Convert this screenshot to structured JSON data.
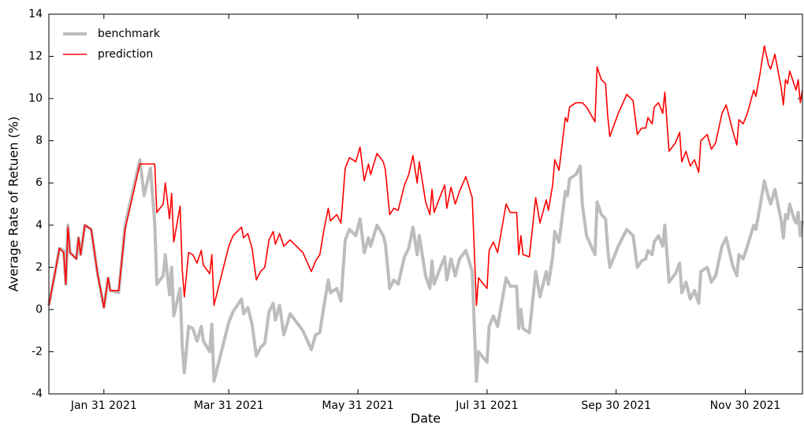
{
  "chart_data": {
    "type": "line",
    "xlabel": "Date",
    "ylabel": "Average Rate of Retuen (%)",
    "legend": "upper left",
    "grid": false,
    "xlim": [
      "2021-01-05",
      "2021-12-27"
    ],
    "xticks": [
      {
        "value": "2021-01-31",
        "label": "Jan 31 2021"
      },
      {
        "value": "2021-03-31",
        "label": "Mar 31 2021"
      },
      {
        "value": "2021-05-31",
        "label": "May 31 2021"
      },
      {
        "value": "2021-07-31",
        "label": "Jul 31 2021"
      },
      {
        "value": "2021-09-30",
        "label": "Sep 30 2021"
      },
      {
        "value": "2021-11-30",
        "label": "Nov 30 2021"
      }
    ],
    "ylim": [
      -4,
      14
    ],
    "yticks": [
      -4,
      -2,
      0,
      2,
      4,
      6,
      8,
      10,
      12,
      14
    ],
    "x": [
      "2021-01-05",
      "2021-01-08",
      "2021-01-10",
      "2021-01-12",
      "2021-01-13",
      "2021-01-14",
      "2021-01-15",
      "2021-01-18",
      "2021-01-19",
      "2021-01-20",
      "2021-01-22",
      "2021-01-25",
      "2021-01-28",
      "2021-01-31",
      "2021-02-02",
      "2021-02-03",
      "2021-02-07",
      "2021-02-10",
      "2021-02-17",
      "2021-02-19",
      "2021-02-22",
      "2021-02-24",
      "2021-02-25",
      "2021-02-28",
      "2021-03-01",
      "2021-03-03",
      "2021-03-04",
      "2021-03-05",
      "2021-03-08",
      "2021-03-09",
      "2021-03-10",
      "2021-03-12",
      "2021-03-14",
      "2021-03-16",
      "2021-03-18",
      "2021-03-19",
      "2021-03-22",
      "2021-03-23",
      "2021-03-24",
      "2021-03-29",
      "2021-03-31",
      "2021-04-02",
      "2021-04-06",
      "2021-04-07",
      "2021-04-09",
      "2021-04-11",
      "2021-04-13",
      "2021-04-15",
      "2021-04-17",
      "2021-04-19",
      "2021-04-21",
      "2021-04-22",
      "2021-04-24",
      "2021-04-26",
      "2021-04-29",
      "2021-05-02",
      "2021-05-05",
      "2021-05-09",
      "2021-05-11",
      "2021-05-13",
      "2021-05-15",
      "2021-05-17",
      "2021-05-18",
      "2021-05-21",
      "2021-05-23",
      "2021-05-25",
      "2021-05-27",
      "2021-05-30",
      "2021-06-01",
      "2021-06-03",
      "2021-06-05",
      "2021-06-06",
      "2021-06-09",
      "2021-06-12",
      "2021-06-13",
      "2021-06-15",
      "2021-06-17",
      "2021-06-19",
      "2021-06-22",
      "2021-06-24",
      "2021-06-26",
      "2021-06-28",
      "2021-06-29",
      "2021-07-02",
      "2021-07-04",
      "2021-07-05",
      "2021-07-06",
      "2021-07-09",
      "2021-07-11",
      "2021-07-12",
      "2021-07-14",
      "2021-07-16",
      "2021-07-18",
      "2021-07-21",
      "2021-07-24",
      "2021-07-26",
      "2021-07-27",
      "2021-07-31",
      "2021-08-01",
      "2021-08-03",
      "2021-08-05",
      "2021-08-09",
      "2021-08-11",
      "2021-08-14",
      "2021-08-15",
      "2021-08-16",
      "2021-08-17",
      "2021-08-20",
      "2021-08-23",
      "2021-08-25",
      "2021-08-28",
      "2021-08-29",
      "2021-08-31",
      "2021-09-01",
      "2021-09-03",
      "2021-09-06",
      "2021-09-07",
      "2021-09-08",
      "2021-09-11",
      "2021-09-13",
      "2021-09-14",
      "2021-09-16",
      "2021-09-20",
      "2021-09-21",
      "2021-09-23",
      "2021-09-25",
      "2021-09-26",
      "2021-09-27",
      "2021-10-01",
      "2021-10-05",
      "2021-10-08",
      "2021-10-10",
      "2021-10-12",
      "2021-10-14",
      "2021-10-15",
      "2021-10-17",
      "2021-10-18",
      "2021-10-20",
      "2021-10-22",
      "2021-10-23",
      "2021-10-25",
      "2021-10-28",
      "2021-10-30",
      "2021-10-31",
      "2021-11-02",
      "2021-11-04",
      "2021-11-06",
      "2021-11-08",
      "2021-11-09",
      "2021-11-12",
      "2021-11-14",
      "2021-11-16",
      "2021-11-19",
      "2021-11-21",
      "2021-11-24",
      "2021-11-26",
      "2021-11-27",
      "2021-11-29",
      "2021-12-01",
      "2021-12-04",
      "2021-12-05",
      "2021-12-07",
      "2021-12-09",
      "2021-12-11",
      "2021-12-12",
      "2021-12-14",
      "2021-12-17",
      "2021-12-18",
      "2021-12-19",
      "2021-12-20",
      "2021-12-21",
      "2021-12-23",
      "2021-12-24",
      "2021-12-25",
      "2021-12-26",
      "2021-12-27"
    ],
    "series": [
      {
        "name": "benchmark",
        "color": "#bdbdbd",
        "width": 4,
        "values": [
          0.2,
          1.8,
          2.9,
          2.8,
          1.2,
          4.0,
          2.7,
          2.4,
          3.4,
          2.6,
          4.0,
          3.8,
          1.7,
          0.1,
          1.5,
          0.9,
          0.8,
          4.0,
          7.1,
          5.4,
          6.7,
          4.1,
          1.2,
          1.6,
          2.6,
          0.7,
          2.0,
          -0.3,
          1.0,
          -1.7,
          -3.0,
          -0.8,
          -0.9,
          -1.5,
          -0.8,
          -1.5,
          -2.0,
          -0.7,
          -3.4,
          -1.4,
          -0.6,
          -0.1,
          0.5,
          -0.2,
          0.1,
          -0.7,
          -2.2,
          -1.8,
          -1.6,
          -0.1,
          0.3,
          -0.5,
          0.2,
          -1.2,
          -0.2,
          -0.6,
          -1.0,
          -1.9,
          -1.2,
          -1.1,
          0.2,
          1.4,
          0.8,
          1.0,
          0.4,
          3.3,
          3.8,
          3.5,
          4.3,
          2.7,
          3.4,
          3.0,
          4.0,
          3.5,
          3.1,
          1.0,
          1.4,
          1.2,
          2.5,
          2.9,
          3.9,
          2.6,
          3.5,
          1.6,
          1.0,
          2.3,
          1.2,
          2.0,
          2.5,
          1.4,
          2.4,
          1.6,
          2.4,
          2.8,
          1.8,
          -3.4,
          -2.0,
          -2.5,
          -0.8,
          -0.3,
          -0.8,
          1.5,
          1.1,
          1.1,
          -0.9,
          0.0,
          -0.9,
          -1.1,
          1.8,
          0.6,
          1.8,
          1.2,
          2.5,
          3.7,
          3.2,
          5.6,
          5.4,
          6.2,
          6.4,
          6.8,
          5.0,
          3.5,
          2.6,
          5.1,
          4.5,
          4.3,
          2.9,
          2.0,
          3.0,
          3.8,
          3.5,
          2.0,
          2.3,
          2.4,
          2.8,
          2.6,
          3.2,
          3.5,
          3.0,
          4.0,
          1.3,
          1.7,
          2.2,
          0.8,
          1.3,
          0.5,
          0.9,
          0.3,
          1.8,
          2.0,
          1.3,
          1.6,
          3.0,
          3.4,
          2.1,
          1.6,
          2.6,
          2.4,
          3.0,
          4.0,
          3.8,
          4.9,
          6.1,
          5.3,
          5.0,
          5.7,
          4.2,
          3.4,
          4.5,
          4.3,
          5.0,
          4.3,
          4.1,
          4.6,
          3.5,
          4.2
        ]
      },
      {
        "name": "prediction",
        "color": "#ff0000",
        "width": 1.6,
        "values": [
          0.2,
          1.8,
          2.9,
          2.7,
          1.2,
          3.9,
          2.7,
          2.4,
          3.4,
          2.6,
          4.0,
          3.8,
          1.7,
          0.1,
          1.5,
          0.9,
          0.9,
          3.8,
          6.9,
          6.9,
          6.9,
          6.9,
          4.6,
          5.0,
          6.0,
          4.3,
          5.5,
          3.2,
          4.9,
          1.9,
          0.6,
          2.7,
          2.6,
          2.2,
          2.8,
          2.1,
          1.7,
          2.6,
          0.2,
          2.2,
          3.0,
          3.5,
          3.9,
          3.4,
          3.6,
          2.9,
          1.4,
          1.8,
          2.0,
          3.3,
          3.7,
          3.1,
          3.6,
          3.0,
          3.3,
          3.0,
          2.7,
          1.8,
          2.3,
          2.6,
          3.8,
          4.8,
          4.2,
          4.5,
          4.1,
          6.7,
          7.2,
          7.0,
          7.7,
          6.1,
          6.9,
          6.4,
          7.4,
          7.0,
          6.6,
          4.5,
          4.8,
          4.7,
          5.9,
          6.4,
          7.3,
          6.0,
          7.0,
          5.1,
          4.5,
          5.7,
          4.6,
          5.4,
          5.9,
          4.8,
          5.8,
          5.0,
          5.6,
          6.3,
          5.3,
          0.2,
          1.5,
          1.0,
          2.8,
          3.2,
          2.7,
          5.0,
          4.6,
          4.6,
          2.6,
          3.5,
          2.6,
          2.5,
          5.3,
          4.1,
          5.2,
          4.7,
          5.9,
          7.1,
          6.6,
          9.1,
          8.9,
          9.6,
          9.8,
          9.8,
          9.8,
          9.6,
          8.9,
          11.5,
          10.9,
          10.7,
          9.2,
          8.2,
          9.3,
          10.2,
          9.9,
          8.3,
          8.6,
          8.6,
          9.1,
          8.8,
          9.6,
          9.8,
          9.3,
          10.3,
          7.5,
          7.9,
          8.4,
          7.0,
          7.5,
          6.8,
          7.1,
          6.5,
          8.0,
          8.3,
          7.6,
          7.9,
          9.3,
          9.7,
          8.5,
          7.8,
          9.0,
          8.8,
          9.3,
          10.4,
          10.1,
          11.2,
          12.5,
          11.6,
          11.4,
          12.1,
          10.5,
          9.7,
          10.9,
          10.7,
          11.3,
          10.7,
          10.4,
          10.9,
          9.8,
          10.4
        ]
      }
    ]
  }
}
